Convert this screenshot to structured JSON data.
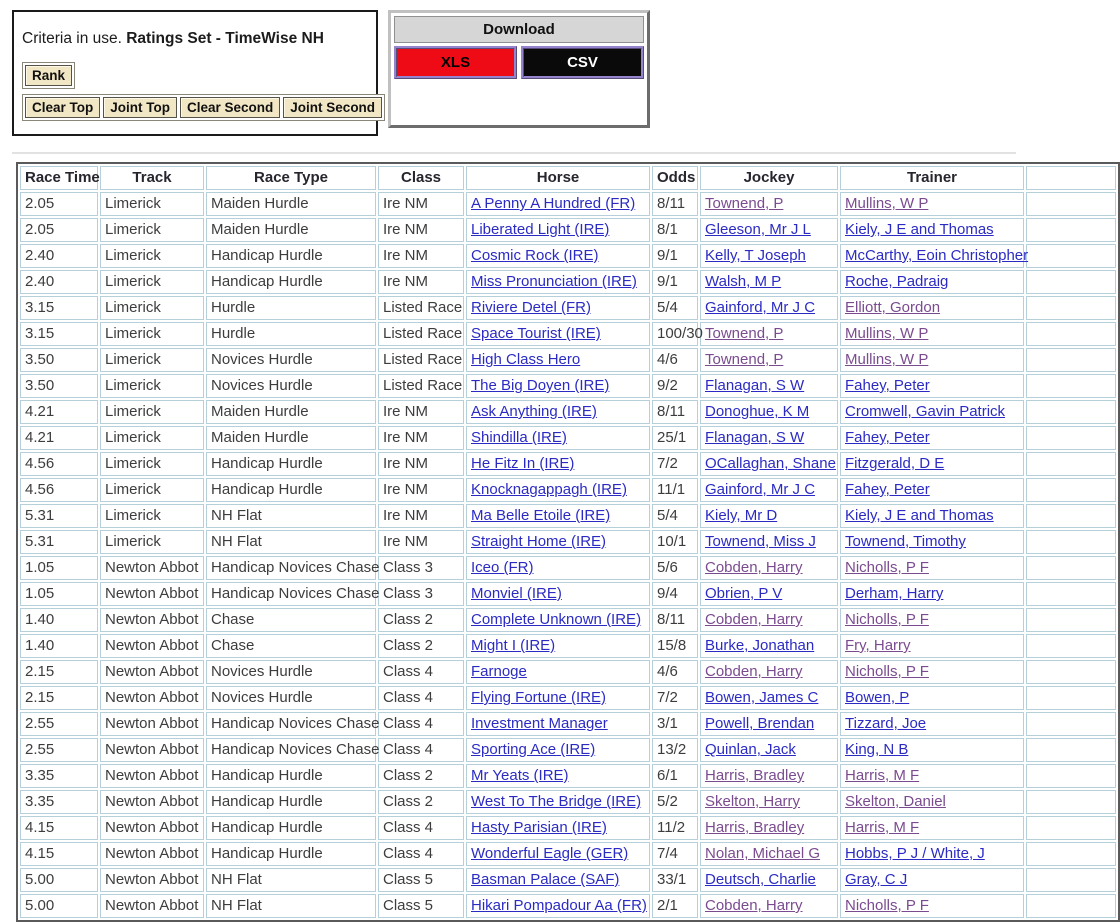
{
  "criteria_panel": {
    "text_prefix": "Criteria in use. ",
    "ratings_set": "Ratings Set - TimeWise NH",
    "rank_label": "Rank",
    "buttons": {
      "clear_top": "Clear Top",
      "joint_top": "Joint Top",
      "clear_second": "Clear Second",
      "joint_second": "Joint Second"
    }
  },
  "download_panel": {
    "title": "Download",
    "xls_label": "XLS",
    "csv_label": "CSV",
    "xls_color": "#ee0b16",
    "csv_color": "#0a0a0a"
  },
  "table": {
    "link_color": "#2b2bc4",
    "visited_link_color": "#7b4b90",
    "border_color": "#b5cfdb",
    "headers": [
      "Race Time",
      "Track",
      "Race Type",
      "Class",
      "Horse",
      "Odds",
      "Jockey",
      "Trainer"
    ],
    "rows": [
      {
        "time": "2.05",
        "track": "Limerick",
        "race_type": "Maiden Hurdle",
        "class": "Ire NM",
        "horse": "A Penny A Hundred (FR)",
        "odds": "8/11",
        "jockey": "Townend, P",
        "trainer": "Mullins, W P",
        "jockey_visited": true,
        "trainer_visited": true
      },
      {
        "time": "2.05",
        "track": "Limerick",
        "race_type": "Maiden Hurdle",
        "class": "Ire NM",
        "horse": "Liberated Light (IRE)",
        "odds": "8/1",
        "jockey": "Gleeson, Mr J L",
        "trainer": "Kiely, J E and Thomas",
        "jockey_visited": false,
        "trainer_visited": false
      },
      {
        "time": "2.40",
        "track": "Limerick",
        "race_type": "Handicap Hurdle",
        "class": "Ire NM",
        "horse": "Cosmic Rock (IRE)",
        "odds": "9/1",
        "jockey": "Kelly, T Joseph",
        "trainer": "McCarthy, Eoin Christopher",
        "jockey_visited": false,
        "trainer_visited": false
      },
      {
        "time": "2.40",
        "track": "Limerick",
        "race_type": "Handicap Hurdle",
        "class": "Ire NM",
        "horse": "Miss Pronunciation (IRE)",
        "odds": "9/1",
        "jockey": "Walsh, M P",
        "trainer": "Roche, Padraig",
        "jockey_visited": false,
        "trainer_visited": false
      },
      {
        "time": "3.15",
        "track": "Limerick",
        "race_type": "Hurdle",
        "class": "Listed Race",
        "horse": "Riviere Detel (FR)",
        "odds": "5/4",
        "jockey": "Gainford, Mr J C",
        "trainer": "Elliott, Gordon",
        "jockey_visited": false,
        "trainer_visited": true
      },
      {
        "time": "3.15",
        "track": "Limerick",
        "race_type": "Hurdle",
        "class": "Listed Race",
        "horse": "Space Tourist (IRE)",
        "odds": "100/30",
        "jockey": "Townend, P",
        "trainer": "Mullins, W P",
        "jockey_visited": true,
        "trainer_visited": true
      },
      {
        "time": "3.50",
        "track": "Limerick",
        "race_type": "Novices Hurdle",
        "class": "Listed Race",
        "horse": "High Class Hero",
        "odds": "4/6",
        "jockey": "Townend, P",
        "trainer": "Mullins, W P",
        "jockey_visited": true,
        "trainer_visited": true
      },
      {
        "time": "3.50",
        "track": "Limerick",
        "race_type": "Novices Hurdle",
        "class": "Listed Race",
        "horse": "The Big Doyen (IRE)",
        "odds": "9/2",
        "jockey": "Flanagan, S W",
        "trainer": "Fahey, Peter",
        "jockey_visited": false,
        "trainer_visited": false
      },
      {
        "time": "4.21",
        "track": "Limerick",
        "race_type": "Maiden Hurdle",
        "class": "Ire NM",
        "horse": "Ask Anything (IRE)",
        "odds": "8/11",
        "jockey": "Donoghue, K M",
        "trainer": "Cromwell, Gavin Patrick",
        "jockey_visited": false,
        "trainer_visited": false
      },
      {
        "time": "4.21",
        "track": "Limerick",
        "race_type": "Maiden Hurdle",
        "class": "Ire NM",
        "horse": "Shindilla (IRE)",
        "odds": "25/1",
        "jockey": "Flanagan, S W",
        "trainer": "Fahey, Peter",
        "jockey_visited": false,
        "trainer_visited": false
      },
      {
        "time": "4.56",
        "track": "Limerick",
        "race_type": "Handicap Hurdle",
        "class": "Ire NM",
        "horse": "He Fitz In (IRE)",
        "odds": "7/2",
        "jockey": "OCallaghan, Shane",
        "trainer": "Fitzgerald, D E",
        "jockey_visited": false,
        "trainer_visited": false
      },
      {
        "time": "4.56",
        "track": "Limerick",
        "race_type": "Handicap Hurdle",
        "class": "Ire NM",
        "horse": "Knocknagappagh (IRE)",
        "odds": "11/1",
        "jockey": "Gainford, Mr J C",
        "trainer": "Fahey, Peter",
        "jockey_visited": false,
        "trainer_visited": false
      },
      {
        "time": "5.31",
        "track": "Limerick",
        "race_type": "NH Flat",
        "class": "Ire NM",
        "horse": "Ma Belle Etoile (IRE)",
        "odds": "5/4",
        "jockey": "Kiely, Mr D",
        "trainer": "Kiely, J E and Thomas",
        "jockey_visited": false,
        "trainer_visited": false
      },
      {
        "time": "5.31",
        "track": "Limerick",
        "race_type": "NH Flat",
        "class": "Ire NM",
        "horse": "Straight Home (IRE)",
        "odds": "10/1",
        "jockey": "Townend, Miss J",
        "trainer": "Townend, Timothy",
        "jockey_visited": false,
        "trainer_visited": false
      },
      {
        "time": "1.05",
        "track": "Newton Abbot",
        "race_type": "Handicap Novices Chase",
        "class": "Class 3",
        "horse": "Iceo (FR)",
        "odds": "5/6",
        "jockey": "Cobden, Harry",
        "trainer": "Nicholls, P F",
        "jockey_visited": true,
        "trainer_visited": true
      },
      {
        "time": "1.05",
        "track": "Newton Abbot",
        "race_type": "Handicap Novices Chase",
        "class": "Class 3",
        "horse": "Monviel (IRE)",
        "odds": "9/4",
        "jockey": "Obrien, P V",
        "trainer": "Derham, Harry",
        "jockey_visited": false,
        "trainer_visited": false
      },
      {
        "time": "1.40",
        "track": "Newton Abbot",
        "race_type": "Chase",
        "class": "Class 2",
        "horse": "Complete Unknown (IRE)",
        "odds": "8/11",
        "jockey": "Cobden, Harry",
        "trainer": "Nicholls, P F",
        "jockey_visited": true,
        "trainer_visited": true
      },
      {
        "time": "1.40",
        "track": "Newton Abbot",
        "race_type": "Chase",
        "class": "Class 2",
        "horse": "Might I (IRE)",
        "odds": "15/8",
        "jockey": "Burke, Jonathan",
        "trainer": "Fry, Harry",
        "jockey_visited": false,
        "trainer_visited": true
      },
      {
        "time": "2.15",
        "track": "Newton Abbot",
        "race_type": "Novices Hurdle",
        "class": "Class 4",
        "horse": "Farnoge",
        "odds": "4/6",
        "jockey": "Cobden, Harry",
        "trainer": "Nicholls, P F",
        "jockey_visited": true,
        "trainer_visited": true
      },
      {
        "time": "2.15",
        "track": "Newton Abbot",
        "race_type": "Novices Hurdle",
        "class": "Class 4",
        "horse": "Flying Fortune (IRE)",
        "odds": "7/2",
        "jockey": "Bowen, James C",
        "trainer": "Bowen, P",
        "jockey_visited": false,
        "trainer_visited": false
      },
      {
        "time": "2.55",
        "track": "Newton Abbot",
        "race_type": "Handicap Novices Chase",
        "class": "Class 4",
        "horse": "Investment Manager",
        "odds": "3/1",
        "jockey": "Powell, Brendan",
        "trainer": "Tizzard, Joe",
        "jockey_visited": false,
        "trainer_visited": false
      },
      {
        "time": "2.55",
        "track": "Newton Abbot",
        "race_type": "Handicap Novices Chase",
        "class": "Class 4",
        "horse": "Sporting Ace (IRE)",
        "odds": "13/2",
        "jockey": "Quinlan, Jack",
        "trainer": "King, N B",
        "jockey_visited": false,
        "trainer_visited": false
      },
      {
        "time": "3.35",
        "track": "Newton Abbot",
        "race_type": "Handicap Hurdle",
        "class": "Class 2",
        "horse": "Mr Yeats (IRE)",
        "odds": "6/1",
        "jockey": "Harris, Bradley",
        "trainer": "Harris, M F",
        "jockey_visited": true,
        "trainer_visited": true
      },
      {
        "time": "3.35",
        "track": "Newton Abbot",
        "race_type": "Handicap Hurdle",
        "class": "Class 2",
        "horse": "West To The Bridge (IRE)",
        "odds": "5/2",
        "jockey": "Skelton, Harry",
        "trainer": "Skelton, Daniel",
        "jockey_visited": true,
        "trainer_visited": true
      },
      {
        "time": "4.15",
        "track": "Newton Abbot",
        "race_type": "Handicap Hurdle",
        "class": "Class 4",
        "horse": "Hasty Parisian (IRE)",
        "odds": "11/2",
        "jockey": "Harris, Bradley",
        "trainer": "Harris, M F",
        "jockey_visited": true,
        "trainer_visited": true
      },
      {
        "time": "4.15",
        "track": "Newton Abbot",
        "race_type": "Handicap Hurdle",
        "class": "Class 4",
        "horse": "Wonderful Eagle (GER)",
        "odds": "7/4",
        "jockey": "Nolan, Michael G",
        "trainer": "Hobbs, P J / White, J",
        "jockey_visited": true,
        "trainer_visited": false
      },
      {
        "time": "5.00",
        "track": "Newton Abbot",
        "race_type": "NH Flat",
        "class": "Class 5",
        "horse": "Basman Palace (SAF)",
        "odds": "33/1",
        "jockey": "Deutsch, Charlie",
        "trainer": "Gray, C J",
        "jockey_visited": false,
        "trainer_visited": false
      },
      {
        "time": "5.00",
        "track": "Newton Abbot",
        "race_type": "NH Flat",
        "class": "Class 5",
        "horse": "Hikari Pompadour Aa (FR)",
        "odds": "2/1",
        "jockey": "Cobden, Harry",
        "trainer": "Nicholls, P F",
        "jockey_visited": true,
        "trainer_visited": true
      }
    ]
  }
}
